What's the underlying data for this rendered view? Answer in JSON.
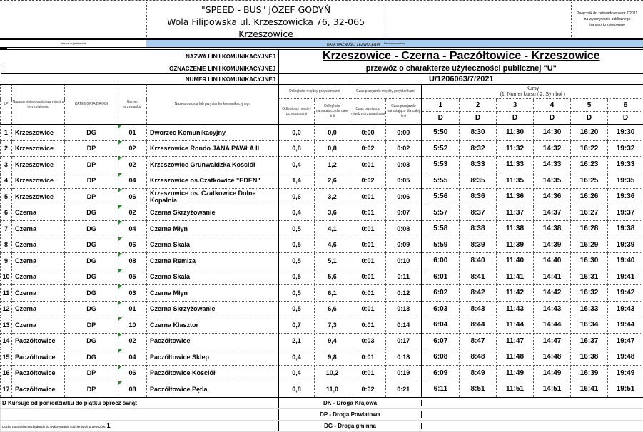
{
  "header": {
    "company_line1": "\"SPEED - BUS\" JÓZEF GODYŃ",
    "company_line2": "Wola Filipowska ul. Krzeszowicka 76, 32-065",
    "company_line3": "Krzeszowice",
    "note_line1": "Załącznik do zaświadczenia nr 7/2021",
    "note_line2": "na wykonywanie publicznego",
    "note_line3": "transportu zbiorowego",
    "organizer_label": "Nazwa organizatora",
    "operator_label": "Nazwa operatora",
    "validity_label": "DATA WAŻNOŚCI ZEZWOLENIA",
    "highlight_color": "#a9cdee"
  },
  "line_info": {
    "name_label": "NAZWA LINII KOMUNIKACYJNEJ",
    "name_value": "Krzeszowice - Czerna - Paczółtowice - Krzeszowice",
    "designation_label": "OZNACZENIE LINII KOMUNIKACYJNEJ",
    "designation_value": "przewóz o charakterze użyteczności publicznej \"U\"",
    "number_label": "NUMER LINII KOMUNIKACYJNEJ",
    "number_value": "U/1206063/7/2021"
  },
  "columns": {
    "lp": "LP",
    "locality": "Nazwa miejscowości wg rejestru terytorialnego",
    "road_category": "KATEGORIA DROGI",
    "stop_number": "Numer przystanku",
    "stop_name": "Nazwa dworca lub przystanku komunikacyjnego",
    "distance_group": "Odległości między przystankami",
    "distance_between": "Odległości między przystankami",
    "distance_cumulative": "Odległości narastająco dla całej linii",
    "time_group": "Czas przejazdu między przystankami",
    "time_between": "Czas przejazdu między przystankami",
    "time_cumulative": "Czas przejazdu narastająco dla całej linii",
    "runs_label": "Kursy",
    "runs_sublabel": "(1. Numer kursu / 2. Symbol )",
    "run_numbers": [
      "1",
      "2",
      "3",
      "4",
      "5",
      "6"
    ],
    "run_symbols": [
      "D",
      "D",
      "D",
      "D",
      "D",
      "D"
    ]
  },
  "rows": [
    {
      "lp": "1",
      "locality": "Krzeszowice",
      "road": "DG",
      "num": "01",
      "stop": "Dworzec Komunikacyjny",
      "d1": "0,0",
      "d2": "0,0",
      "t1": "0:00",
      "t2": "0:00",
      "times": [
        "5:50",
        "8:30",
        "11:30",
        "14:30",
        "16:20",
        "19:30"
      ]
    },
    {
      "lp": "2",
      "locality": "Krzeszowice",
      "road": "DP",
      "num": "02",
      "stop": "Krzeszowice Rondo JANA PAWŁA II",
      "d1": "0,8",
      "d2": "0,8",
      "t1": "0:02",
      "t2": "0:02",
      "times": [
        "5:52",
        "8:32",
        "11:32",
        "14:32",
        "16:22",
        "19:32"
      ]
    },
    {
      "lp": "3",
      "locality": "Krzeszowice",
      "road": "DP",
      "num": "02",
      "stop": "Krzeszowice Grunwaldzka Kościół",
      "d1": "0,4",
      "d2": "1,2",
      "t1": "0:01",
      "t2": "0:03",
      "times": [
        "5:53",
        "8:33",
        "11:33",
        "14:33",
        "16:23",
        "19:33"
      ]
    },
    {
      "lp": "4",
      "locality": "Krzeszowice",
      "road": "DP",
      "num": "04",
      "stop": "Krzeszowice os.Czatkowice \"EDEN\"",
      "d1": "1,4",
      "d2": "2,6",
      "t1": "0:02",
      "t2": "0:05",
      "times": [
        "5:55",
        "8:35",
        "11:35",
        "14:35",
        "16:25",
        "19:35"
      ]
    },
    {
      "lp": "5",
      "locality": "Krzeszowice",
      "road": "DP",
      "num": "06",
      "stop": "Krzeszowice os. Czatkowice Dolne Kopalnia",
      "d1": "0,6",
      "d2": "3,2",
      "t1": "0:01",
      "t2": "0:06",
      "times": [
        "5:56",
        "8:36",
        "11:36",
        "14:36",
        "16:26",
        "19:36"
      ]
    },
    {
      "lp": "6",
      "locality": "Czerna",
      "road": "DG",
      "num": "02",
      "stop": "Czerna Skrzyżowanie",
      "d1": "0,4",
      "d2": "3,6",
      "t1": "0:01",
      "t2": "0:07",
      "times": [
        "5:57",
        "8:37",
        "11:37",
        "14:37",
        "16:27",
        "19:37"
      ]
    },
    {
      "lp": "7",
      "locality": "Czerna",
      "road": "DG",
      "num": "04",
      "stop": "Czerna Młyn",
      "d1": "0,5",
      "d2": "4,1",
      "t1": "0:01",
      "t2": "0:08",
      "times": [
        "5:58",
        "8:38",
        "11:38",
        "14:38",
        "16:28",
        "19:38"
      ]
    },
    {
      "lp": "8",
      "locality": "Czerna",
      "road": "DG",
      "num": "06",
      "stop": "Czerna Skała",
      "d1": "0,5",
      "d2": "4,6",
      "t1": "0:01",
      "t2": "0:09",
      "times": [
        "5:59",
        "8:39",
        "11:39",
        "14:39",
        "16:29",
        "19:39"
      ]
    },
    {
      "lp": "9",
      "locality": "Czerna",
      "road": "DG",
      "num": "08",
      "stop": "Czerna Remiza",
      "d1": "0,5",
      "d2": "5,1",
      "t1": "0:01",
      "t2": "0:10",
      "times": [
        "6:00",
        "8:40",
        "11:40",
        "14:40",
        "16:30",
        "19:40"
      ]
    },
    {
      "lp": "10",
      "locality": "Czerna",
      "road": "DG",
      "num": "05",
      "stop": "Czerna Skała",
      "d1": "0,5",
      "d2": "5,6",
      "t1": "0:01",
      "t2": "0:11",
      "times": [
        "6:01",
        "8:41",
        "11:41",
        "14:41",
        "16:31",
        "19:41"
      ]
    },
    {
      "lp": "11",
      "locality": "Czerna",
      "road": "DG",
      "num": "03",
      "stop": "Czerna Młyn",
      "d1": "0,5",
      "d2": "6,1",
      "t1": "0:01",
      "t2": "0:12",
      "times": [
        "6:02",
        "8:42",
        "11:42",
        "14:42",
        "16:32",
        "19:42"
      ]
    },
    {
      "lp": "12",
      "locality": "Czerna",
      "road": "DG",
      "num": "01",
      "stop": "Czerna Skrzyżowanie",
      "d1": "0,5",
      "d2": "6,6",
      "t1": "0:01",
      "t2": "0:13",
      "times": [
        "6:03",
        "8:43",
        "11:43",
        "14:43",
        "16:33",
        "19:43"
      ]
    },
    {
      "lp": "13",
      "locality": "Czerna",
      "road": "DP",
      "num": "10",
      "stop": "Czerna Klasztor",
      "d1": "0,7",
      "d2": "7,3",
      "t1": "0:01",
      "t2": "0:14",
      "times": [
        "6:04",
        "8:44",
        "11:44",
        "14:44",
        "16:34",
        "19:44"
      ]
    },
    {
      "lp": "14",
      "locality": "Paczółtowice",
      "road": "DG",
      "num": "02",
      "stop": "Paczółtowice",
      "d1": "2,1",
      "d2": "9,4",
      "t1": "0:03",
      "t2": "0:17",
      "times": [
        "6:07",
        "8:47",
        "11:47",
        "14:47",
        "16:37",
        "19:47"
      ]
    },
    {
      "lp": "15",
      "locality": "Paczółtowice",
      "road": "DG",
      "num": "04",
      "stop": "Paczółtowice Sklep",
      "d1": "0,4",
      "d2": "9,8",
      "t1": "0:01",
      "t2": "0:18",
      "times": [
        "6:08",
        "8:48",
        "11:48",
        "14:48",
        "16:38",
        "19:48"
      ]
    },
    {
      "lp": "16",
      "locality": "Paczółtowice",
      "road": "DP",
      "num": "06",
      "stop": "Paczółtowice Kościół",
      "d1": "0,4",
      "d2": "10,2",
      "t1": "0:01",
      "t2": "0:19",
      "times": [
        "6:09",
        "8:49",
        "11:49",
        "14:49",
        "16:39",
        "19:49"
      ]
    },
    {
      "lp": "17",
      "locality": "Paczółtowice",
      "road": "DP",
      "num": "08",
      "stop": "Paczółtowice Pętla",
      "d1": "0,8",
      "d2": "11,0",
      "t1": "0:02",
      "t2": "0:21",
      "times": [
        "6:11",
        "8:51",
        "11:51",
        "14:51",
        "16:41",
        "19:51"
      ]
    }
  ],
  "footer": {
    "symbol_note": "D  Kursuje od poniedziałku do piątku oprócz świąt",
    "legend_dk": "DK - Droga Krajowa",
    "legend_dp": "DP - Droga Powiatowa",
    "legend_dg": "DG - Droga gminna",
    "vehicles_label": "Liczba pojazdów niezbędnych do wykonywania codziennych przewozów:",
    "vehicles_value": "1"
  }
}
